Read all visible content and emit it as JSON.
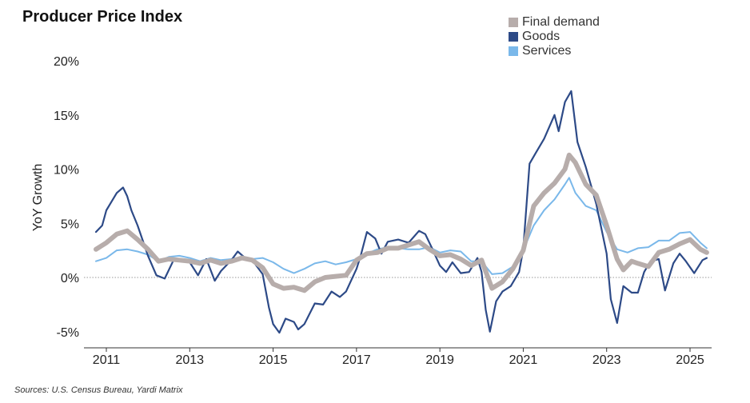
{
  "chart_data": {
    "type": "line",
    "title": "Producer Price Index",
    "xlabel": "",
    "ylabel": "YoY Growth",
    "x_ticks": [
      "2011",
      "2013",
      "2015",
      "2017",
      "2019",
      "2021",
      "2023",
      "2025"
    ],
    "y_ticks": [
      "20%",
      "15%",
      "10%",
      "5%",
      "0%",
      "-5%"
    ],
    "xlim": [
      2010.5,
      2025.6
    ],
    "ylim": [
      -6,
      20.5
    ],
    "source": "Sources: U.S. Census Bureau, Yardi Matrix",
    "series": [
      {
        "name": "Services",
        "color": "#7ab8ea",
        "width": 2,
        "points": [
          [
            2010.75,
            1.5
          ],
          [
            2011.0,
            1.8
          ],
          [
            2011.25,
            2.5
          ],
          [
            2011.5,
            2.6
          ],
          [
            2011.75,
            2.4
          ],
          [
            2012.0,
            2.1
          ],
          [
            2012.25,
            1.5
          ],
          [
            2012.5,
            1.9
          ],
          [
            2012.75,
            2.0
          ],
          [
            2013.0,
            1.8
          ],
          [
            2013.25,
            1.5
          ],
          [
            2013.5,
            1.8
          ],
          [
            2013.75,
            1.6
          ],
          [
            2014.0,
            1.7
          ],
          [
            2014.25,
            1.9
          ],
          [
            2014.5,
            1.7
          ],
          [
            2014.75,
            1.8
          ],
          [
            2015.0,
            1.4
          ],
          [
            2015.25,
            0.8
          ],
          [
            2015.5,
            0.4
          ],
          [
            2015.75,
            0.8
          ],
          [
            2016.0,
            1.3
          ],
          [
            2016.25,
            1.5
          ],
          [
            2016.5,
            1.2
          ],
          [
            2016.75,
            1.4
          ],
          [
            2017.0,
            1.7
          ],
          [
            2017.25,
            2.2
          ],
          [
            2017.5,
            2.6
          ],
          [
            2017.75,
            2.8
          ],
          [
            2018.0,
            2.7
          ],
          [
            2018.25,
            2.6
          ],
          [
            2018.5,
            2.6
          ],
          [
            2018.75,
            2.8
          ],
          [
            2019.0,
            2.3
          ],
          [
            2019.25,
            2.5
          ],
          [
            2019.5,
            2.4
          ],
          [
            2019.75,
            1.5
          ],
          [
            2020.0,
            1.5
          ],
          [
            2020.25,
            0.3
          ],
          [
            2020.5,
            0.4
          ],
          [
            2020.75,
            1.0
          ],
          [
            2021.0,
            2.5
          ],
          [
            2021.25,
            4.8
          ],
          [
            2021.5,
            6.2
          ],
          [
            2021.75,
            7.2
          ],
          [
            2022.0,
            8.6
          ],
          [
            2022.1,
            9.2
          ],
          [
            2022.25,
            7.8
          ],
          [
            2022.5,
            6.6
          ],
          [
            2022.75,
            6.2
          ],
          [
            2023.0,
            4.2
          ],
          [
            2023.25,
            2.6
          ],
          [
            2023.5,
            2.3
          ],
          [
            2023.75,
            2.7
          ],
          [
            2024.0,
            2.8
          ],
          [
            2024.25,
            3.4
          ],
          [
            2024.5,
            3.4
          ],
          [
            2024.75,
            4.1
          ],
          [
            2025.0,
            4.2
          ],
          [
            2025.25,
            3.2
          ],
          [
            2025.4,
            2.7
          ]
        ]
      },
      {
        "name": "Goods",
        "color": "#2d4a87",
        "width": 2.2,
        "points": [
          [
            2010.75,
            4.2
          ],
          [
            2010.9,
            4.8
          ],
          [
            2011.0,
            6.2
          ],
          [
            2011.25,
            7.8
          ],
          [
            2011.4,
            8.3
          ],
          [
            2011.5,
            7.5
          ],
          [
            2011.6,
            6.2
          ],
          [
            2011.75,
            4.8
          ],
          [
            2012.0,
            2.0
          ],
          [
            2012.2,
            0.2
          ],
          [
            2012.4,
            -0.1
          ],
          [
            2012.6,
            1.5
          ],
          [
            2012.75,
            1.7
          ],
          [
            2013.0,
            1.4
          ],
          [
            2013.2,
            0.2
          ],
          [
            2013.4,
            1.7
          ],
          [
            2013.6,
            -0.3
          ],
          [
            2013.75,
            0.6
          ],
          [
            2014.0,
            1.6
          ],
          [
            2014.15,
            2.4
          ],
          [
            2014.3,
            1.9
          ],
          [
            2014.5,
            1.6
          ],
          [
            2014.75,
            0.3
          ],
          [
            2014.9,
            -2.8
          ],
          [
            2015.0,
            -4.3
          ],
          [
            2015.15,
            -5.1
          ],
          [
            2015.3,
            -3.8
          ],
          [
            2015.5,
            -4.1
          ],
          [
            2015.6,
            -4.8
          ],
          [
            2015.75,
            -4.3
          ],
          [
            2016.0,
            -2.4
          ],
          [
            2016.2,
            -2.5
          ],
          [
            2016.4,
            -1.3
          ],
          [
            2016.6,
            -1.8
          ],
          [
            2016.75,
            -1.3
          ],
          [
            2017.0,
            0.8
          ],
          [
            2017.1,
            2.0
          ],
          [
            2017.25,
            4.2
          ],
          [
            2017.45,
            3.6
          ],
          [
            2017.6,
            2.2
          ],
          [
            2017.75,
            3.3
          ],
          [
            2018.0,
            3.5
          ],
          [
            2018.25,
            3.2
          ],
          [
            2018.5,
            4.3
          ],
          [
            2018.65,
            4.0
          ],
          [
            2018.8,
            2.8
          ],
          [
            2019.0,
            1.1
          ],
          [
            2019.15,
            0.5
          ],
          [
            2019.3,
            1.4
          ],
          [
            2019.5,
            0.4
          ],
          [
            2019.7,
            0.5
          ],
          [
            2019.9,
            1.8
          ],
          [
            2020.0,
            0.5
          ],
          [
            2020.1,
            -3.0
          ],
          [
            2020.2,
            -5.0
          ],
          [
            2020.35,
            -2.2
          ],
          [
            2020.5,
            -1.3
          ],
          [
            2020.7,
            -0.8
          ],
          [
            2020.9,
            0.5
          ],
          [
            2021.0,
            2.6
          ],
          [
            2021.15,
            10.5
          ],
          [
            2021.3,
            11.5
          ],
          [
            2021.5,
            12.8
          ],
          [
            2021.75,
            15.0
          ],
          [
            2021.85,
            13.5
          ],
          [
            2022.0,
            16.2
          ],
          [
            2022.15,
            17.2
          ],
          [
            2022.3,
            12.5
          ],
          [
            2022.5,
            10.2
          ],
          [
            2022.75,
            6.8
          ],
          [
            2023.0,
            2.2
          ],
          [
            2023.1,
            -2.0
          ],
          [
            2023.25,
            -4.2
          ],
          [
            2023.4,
            -0.8
          ],
          [
            2023.6,
            -1.4
          ],
          [
            2023.75,
            -1.4
          ],
          [
            2023.9,
            0.5
          ],
          [
            2024.05,
            1.5
          ],
          [
            2024.25,
            1.7
          ],
          [
            2024.4,
            -1.2
          ],
          [
            2024.6,
            1.3
          ],
          [
            2024.75,
            2.2
          ],
          [
            2024.9,
            1.5
          ],
          [
            2025.1,
            0.4
          ],
          [
            2025.3,
            1.6
          ],
          [
            2025.4,
            1.8
          ]
        ]
      },
      {
        "name": "Final demand",
        "color": "#b7adab",
        "width": 6,
        "points": [
          [
            2010.75,
            2.6
          ],
          [
            2011.0,
            3.2
          ],
          [
            2011.25,
            4.0
          ],
          [
            2011.5,
            4.3
          ],
          [
            2011.75,
            3.5
          ],
          [
            2012.0,
            2.6
          ],
          [
            2012.25,
            1.5
          ],
          [
            2012.5,
            1.7
          ],
          [
            2012.75,
            1.6
          ],
          [
            2013.0,
            1.5
          ],
          [
            2013.25,
            1.3
          ],
          [
            2013.5,
            1.6
          ],
          [
            2013.75,
            1.3
          ],
          [
            2014.0,
            1.5
          ],
          [
            2014.25,
            1.8
          ],
          [
            2014.5,
            1.6
          ],
          [
            2014.75,
            0.9
          ],
          [
            2015.0,
            -0.6
          ],
          [
            2015.25,
            -1.0
          ],
          [
            2015.5,
            -0.9
          ],
          [
            2015.75,
            -1.2
          ],
          [
            2016.0,
            -0.4
          ],
          [
            2016.25,
            0.0
          ],
          [
            2016.5,
            0.1
          ],
          [
            2016.75,
            0.2
          ],
          [
            2017.0,
            1.6
          ],
          [
            2017.25,
            2.2
          ],
          [
            2017.5,
            2.3
          ],
          [
            2017.75,
            2.7
          ],
          [
            2018.0,
            2.7
          ],
          [
            2018.25,
            3.0
          ],
          [
            2018.5,
            3.3
          ],
          [
            2018.75,
            2.6
          ],
          [
            2019.0,
            2.0
          ],
          [
            2019.25,
            2.1
          ],
          [
            2019.5,
            1.7
          ],
          [
            2019.75,
            1.1
          ],
          [
            2020.0,
            1.6
          ],
          [
            2020.25,
            -1.0
          ],
          [
            2020.5,
            -0.4
          ],
          [
            2020.75,
            0.8
          ],
          [
            2021.0,
            2.5
          ],
          [
            2021.25,
            6.6
          ],
          [
            2021.5,
            7.8
          ],
          [
            2021.75,
            8.7
          ],
          [
            2022.0,
            10.0
          ],
          [
            2022.1,
            11.3
          ],
          [
            2022.25,
            10.6
          ],
          [
            2022.5,
            8.6
          ],
          [
            2022.75,
            7.6
          ],
          [
            2023.0,
            4.8
          ],
          [
            2023.25,
            1.7
          ],
          [
            2023.4,
            0.7
          ],
          [
            2023.6,
            1.5
          ],
          [
            2023.75,
            1.3
          ],
          [
            2024.0,
            1.0
          ],
          [
            2024.25,
            2.3
          ],
          [
            2024.5,
            2.6
          ],
          [
            2024.75,
            3.1
          ],
          [
            2025.0,
            3.5
          ],
          [
            2025.25,
            2.6
          ],
          [
            2025.4,
            2.3
          ]
        ]
      }
    ]
  }
}
